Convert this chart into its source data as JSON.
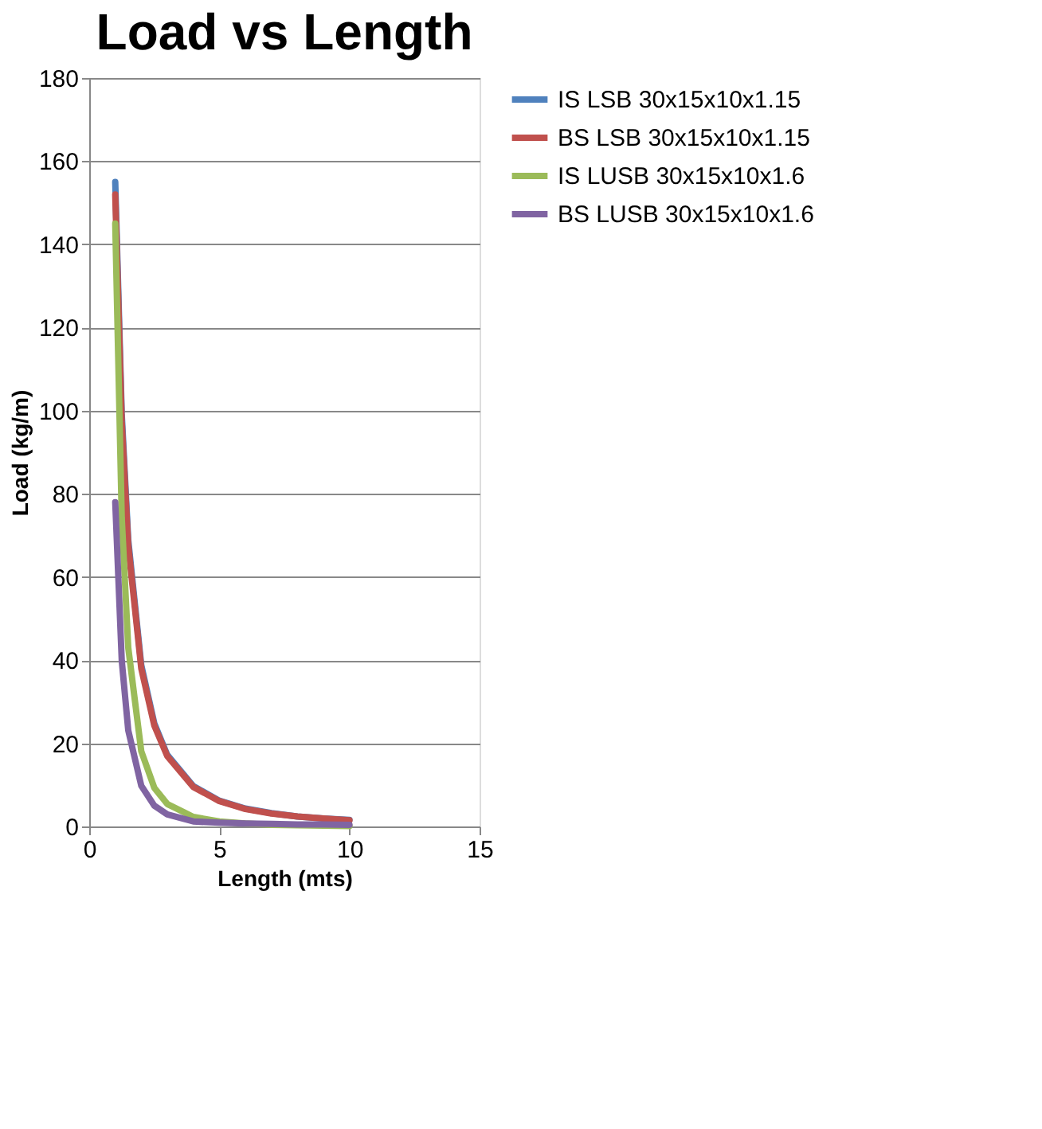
{
  "chart_data": {
    "type": "line",
    "title": "Load vs Length",
    "xlabel": "Length (mts)",
    "ylabel": "Load (kg/m)",
    "xlim": [
      0,
      15
    ],
    "xticks": [
      0,
      5,
      10,
      15
    ],
    "ylim": [
      0,
      180
    ],
    "yticks": [
      0,
      20,
      40,
      60,
      80,
      100,
      120,
      140,
      160,
      180
    ],
    "grid": "y",
    "legend": "right",
    "marker": "none",
    "line_style": "solid",
    "x": [
      1,
      1.25,
      1.5,
      2,
      2.5,
      3,
      4,
      5,
      6,
      7,
      8,
      9,
      10
    ],
    "series": [
      {
        "name": "IS LSB 30x15x10x1.15",
        "color": "#4f81bd",
        "values": [
          155,
          99.2,
          68.9,
          38.8,
          24.8,
          17.2,
          9.7,
          6.2,
          4.3,
          3.2,
          2.4,
          1.9,
          1.6
        ]
      },
      {
        "name": "BS LSB 30x15x10x1.15",
        "color": "#c0504d",
        "values": [
          152,
          97.3,
          67.6,
          38,
          24.3,
          16.9,
          9.5,
          6.1,
          4.2,
          3.1,
          2.4,
          1.9,
          1.5
        ]
      },
      {
        "name": "IS LUSB 30x15x10x1.6",
        "color": "#9bbb59",
        "values": [
          145,
          74.2,
          43,
          18.1,
          9.3,
          5.4,
          2.3,
          1.2,
          0.7,
          0.4,
          0.3,
          0.2,
          0.1
        ]
      },
      {
        "name": "BS LUSB 30x15x10x1.6",
        "color": "#8064a2",
        "values": [
          78,
          39.9,
          23.1,
          9.8,
          5,
          2.9,
          1.2,
          0.9,
          0.7,
          0.6,
          0.5,
          0.5,
          0.4
        ]
      }
    ]
  }
}
